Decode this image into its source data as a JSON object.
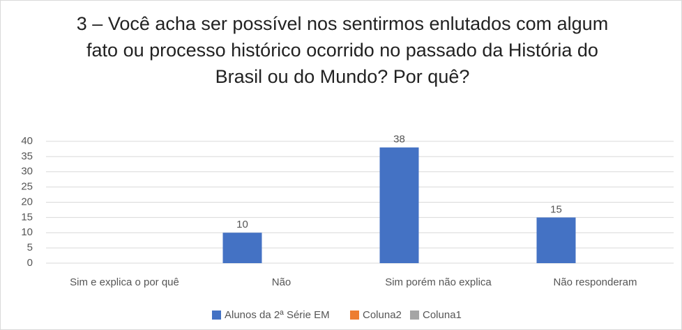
{
  "chart_data": {
    "type": "bar",
    "title": "3 – Você acha ser possível nos sentirmos enlutados com algum fato ou processo histórico ocorrido no passado da História do Brasil ou do Mundo? Por quê?",
    "categories": [
      "Sim e explica o por quê",
      "Não",
      "Sim porém não explica",
      "Não responderam"
    ],
    "series": [
      {
        "name": "Alunos da 2ª Série EM",
        "color": "#4472c4",
        "values": [
          null,
          10,
          38,
          15
        ]
      },
      {
        "name": "Coluna2",
        "color": "#ed7d31",
        "values": [
          null,
          null,
          null,
          null
        ]
      },
      {
        "name": "Coluna1",
        "color": "#a5a5a5",
        "values": [
          null,
          null,
          null,
          null
        ]
      }
    ],
    "ylim": [
      0,
      40
    ],
    "yticks": [
      0,
      5,
      10,
      15,
      20,
      25,
      30,
      35,
      40
    ],
    "grid": true,
    "legend": "bottom"
  }
}
